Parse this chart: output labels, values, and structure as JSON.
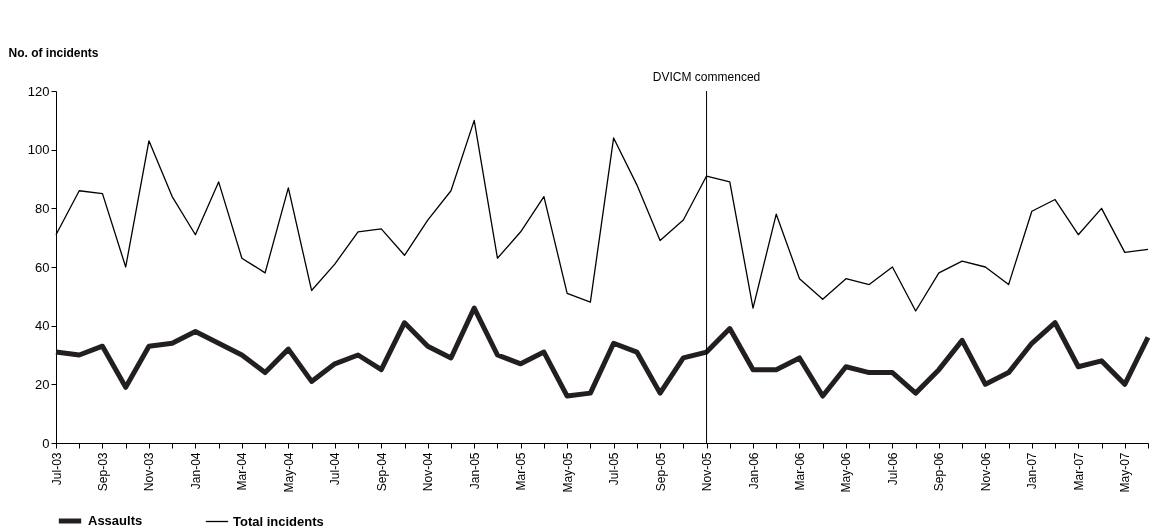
{
  "chart_data": {
    "type": "line",
    "ylabel": "No. of incidents",
    "categories": [
      "Jul-03",
      null,
      "Sep-03",
      null,
      "Nov-03",
      null,
      "Jan-04",
      null,
      "Mar-04",
      null,
      "May-04",
      null,
      "Jul-04",
      null,
      "Sep-04",
      null,
      "Nov-04",
      null,
      "Jan-05",
      null,
      "Mar-05",
      null,
      "May-05",
      null,
      "Jul-05",
      null,
      "Sep-05",
      null,
      "Nov-05",
      null,
      "Jan-06",
      null,
      "Mar-06",
      null,
      "May-06",
      null,
      "Jul-06",
      null,
      "Sep-06",
      null,
      "Nov-06",
      null,
      "Jan-07",
      null,
      "Mar-07",
      null,
      "May-07",
      null
    ],
    "series": [
      {
        "name": "Assaults",
        "color": "#231f20",
        "values": [
          31,
          30,
          33,
          19,
          33,
          34,
          38,
          34,
          30,
          24,
          32,
          21,
          27,
          30,
          25,
          41,
          33,
          29,
          46,
          30,
          27,
          31,
          16,
          17,
          34,
          31,
          17,
          29,
          31,
          39,
          25,
          25,
          29,
          16,
          26,
          24,
          24,
          17,
          25,
          35,
          20,
          24,
          34,
          41,
          26,
          28,
          20,
          36
        ]
      },
      {
        "name": "Total incidents",
        "color": "#000000",
        "values": [
          71,
          86,
          85,
          60,
          103,
          84,
          71,
          89,
          63,
          58,
          87,
          52,
          61,
          72,
          73,
          64,
          76,
          86,
          110,
          63,
          72,
          84,
          51,
          48,
          104,
          88,
          69,
          76,
          91,
          89,
          46,
          78,
          56,
          49,
          56,
          54,
          60,
          45,
          58,
          62,
          60,
          54,
          79,
          83,
          71,
          80,
          65,
          66
        ]
      }
    ],
    "ylim": [
      0,
      120
    ],
    "yticks": [
      0,
      20,
      40,
      60,
      80,
      100,
      120
    ],
    "ref_lines": [
      {
        "axis": "x",
        "value": "Nov-05",
        "label": "DVICM commenced",
        "color": "#000000"
      }
    ],
    "legend": "bottom",
    "grid": false
  }
}
